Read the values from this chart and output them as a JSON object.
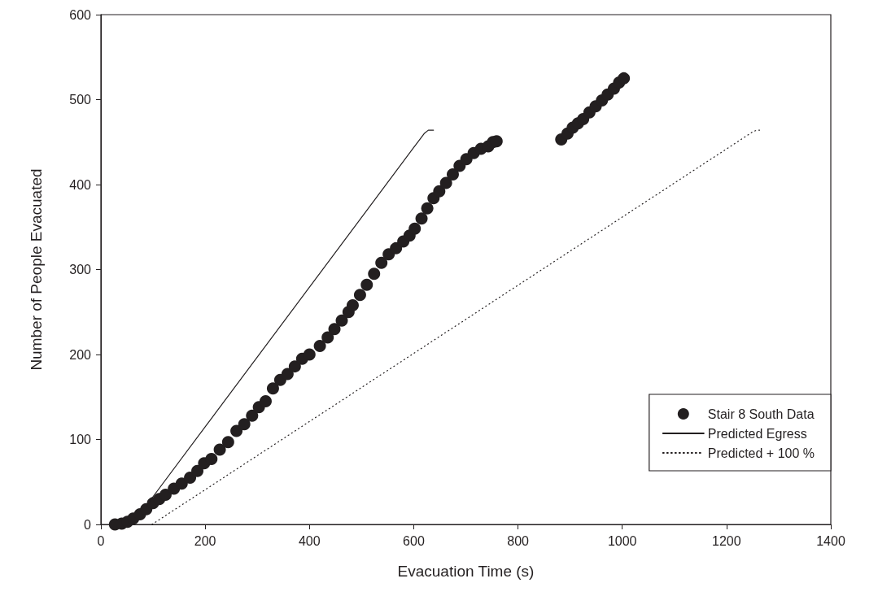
{
  "chart_data": {
    "type": "scatter",
    "xlabel": "Evacuation Time (s)",
    "ylabel": "Number of People Evacuated",
    "xlim": [
      0,
      1400
    ],
    "ylim": [
      0,
      600
    ],
    "xticks": [
      0,
      200,
      400,
      600,
      800,
      1000,
      1200,
      1400
    ],
    "yticks": [
      0,
      100,
      200,
      300,
      400,
      500,
      600
    ],
    "grid": false,
    "legend": "bottom right",
    "series": [
      {
        "name": "Stair 8 South Data",
        "type": "scatter",
        "marker": "circle",
        "color": "#231f20",
        "x": [
          27,
          40,
          51,
          62,
          75,
          87,
          100,
          112,
          124,
          140,
          155,
          171,
          185,
          198,
          212,
          228,
          244,
          260,
          275,
          290,
          303,
          316,
          330,
          344,
          358,
          372,
          386,
          400,
          420,
          435,
          448,
          462,
          475,
          483,
          497,
          510,
          524,
          538,
          552,
          566,
          580,
          592,
          602,
          615,
          626,
          638,
          649,
          662,
          675,
          688,
          701,
          715,
          729,
          743,
          752,
          759,
          883,
          895,
          905,
          915,
          925,
          937,
          949,
          961,
          972,
          984,
          994,
          1003
        ],
        "values": [
          0,
          1,
          3,
          7,
          12,
          18,
          25,
          30,
          35,
          42,
          48,
          55,
          63,
          72,
          77,
          88,
          97,
          110,
          118,
          128,
          138,
          145,
          160,
          170,
          177,
          186,
          195,
          200,
          210,
          220,
          230,
          240,
          250,
          258,
          270,
          282,
          295,
          308,
          318,
          325,
          333,
          340,
          348,
          360,
          372,
          384,
          392,
          402,
          412,
          422,
          430,
          437,
          442,
          445,
          450,
          451,
          453,
          460,
          467,
          472,
          477,
          485,
          492,
          499,
          506,
          513,
          520,
          525
        ]
      },
      {
        "name": "Predicted Egress",
        "type": "line",
        "marker": "none",
        "line_style": "solid",
        "color": "#231f20",
        "x": [
          87,
          620,
          628,
          638
        ],
        "values": [
          22,
          460,
          464,
          464
        ]
      },
      {
        "name": "Predicted + 100 %",
        "type": "line",
        "marker": "none",
        "line_style": "dotted",
        "color": "#231f20",
        "x": [
          98,
          1250,
          1258,
          1268
        ],
        "values": [
          0,
          462,
          464,
          464
        ]
      }
    ]
  }
}
